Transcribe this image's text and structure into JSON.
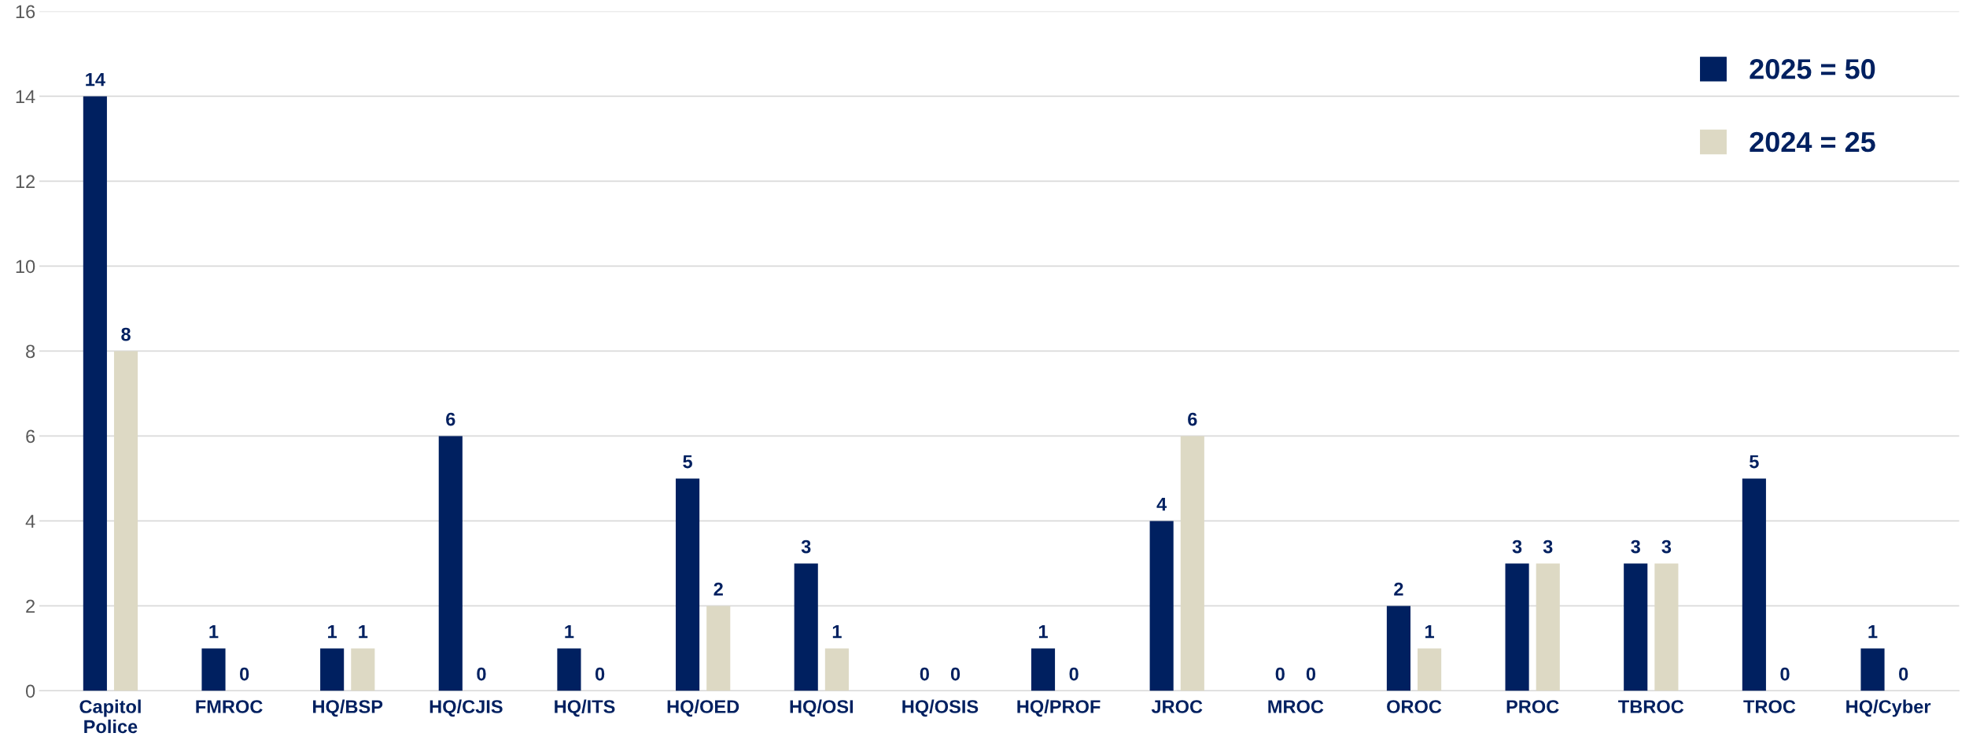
{
  "chart_data": {
    "type": "bar",
    "categories": [
      "Capitol\nPolice",
      "FMROC",
      "HQ/BSP",
      "HQ/CJIS",
      "HQ/ITS",
      "HQ/OED",
      "HQ/OSI",
      "HQ/OSIS",
      "HQ/PROF",
      "JROC",
      "MROC",
      "OROC",
      "PROC",
      "TBROC",
      "TROC",
      "HQ/Cyber"
    ],
    "series": [
      {
        "name": "2025 = 50",
        "color": "#002060",
        "values": [
          14,
          1,
          1,
          6,
          1,
          5,
          3,
          0,
          1,
          4,
          0,
          2,
          3,
          3,
          5,
          1
        ]
      },
      {
        "name": "2024 = 25",
        "color": "#ddd9c4",
        "values": [
          8,
          0,
          1,
          0,
          0,
          2,
          1,
          0,
          0,
          6,
          0,
          1,
          3,
          3,
          0,
          0
        ]
      }
    ],
    "ylim": [
      0,
      16
    ],
    "yticks": [
      0,
      2,
      4,
      6,
      8,
      10,
      12,
      14,
      16
    ],
    "grid": "y",
    "legend": "top right",
    "data_labels": true
  }
}
